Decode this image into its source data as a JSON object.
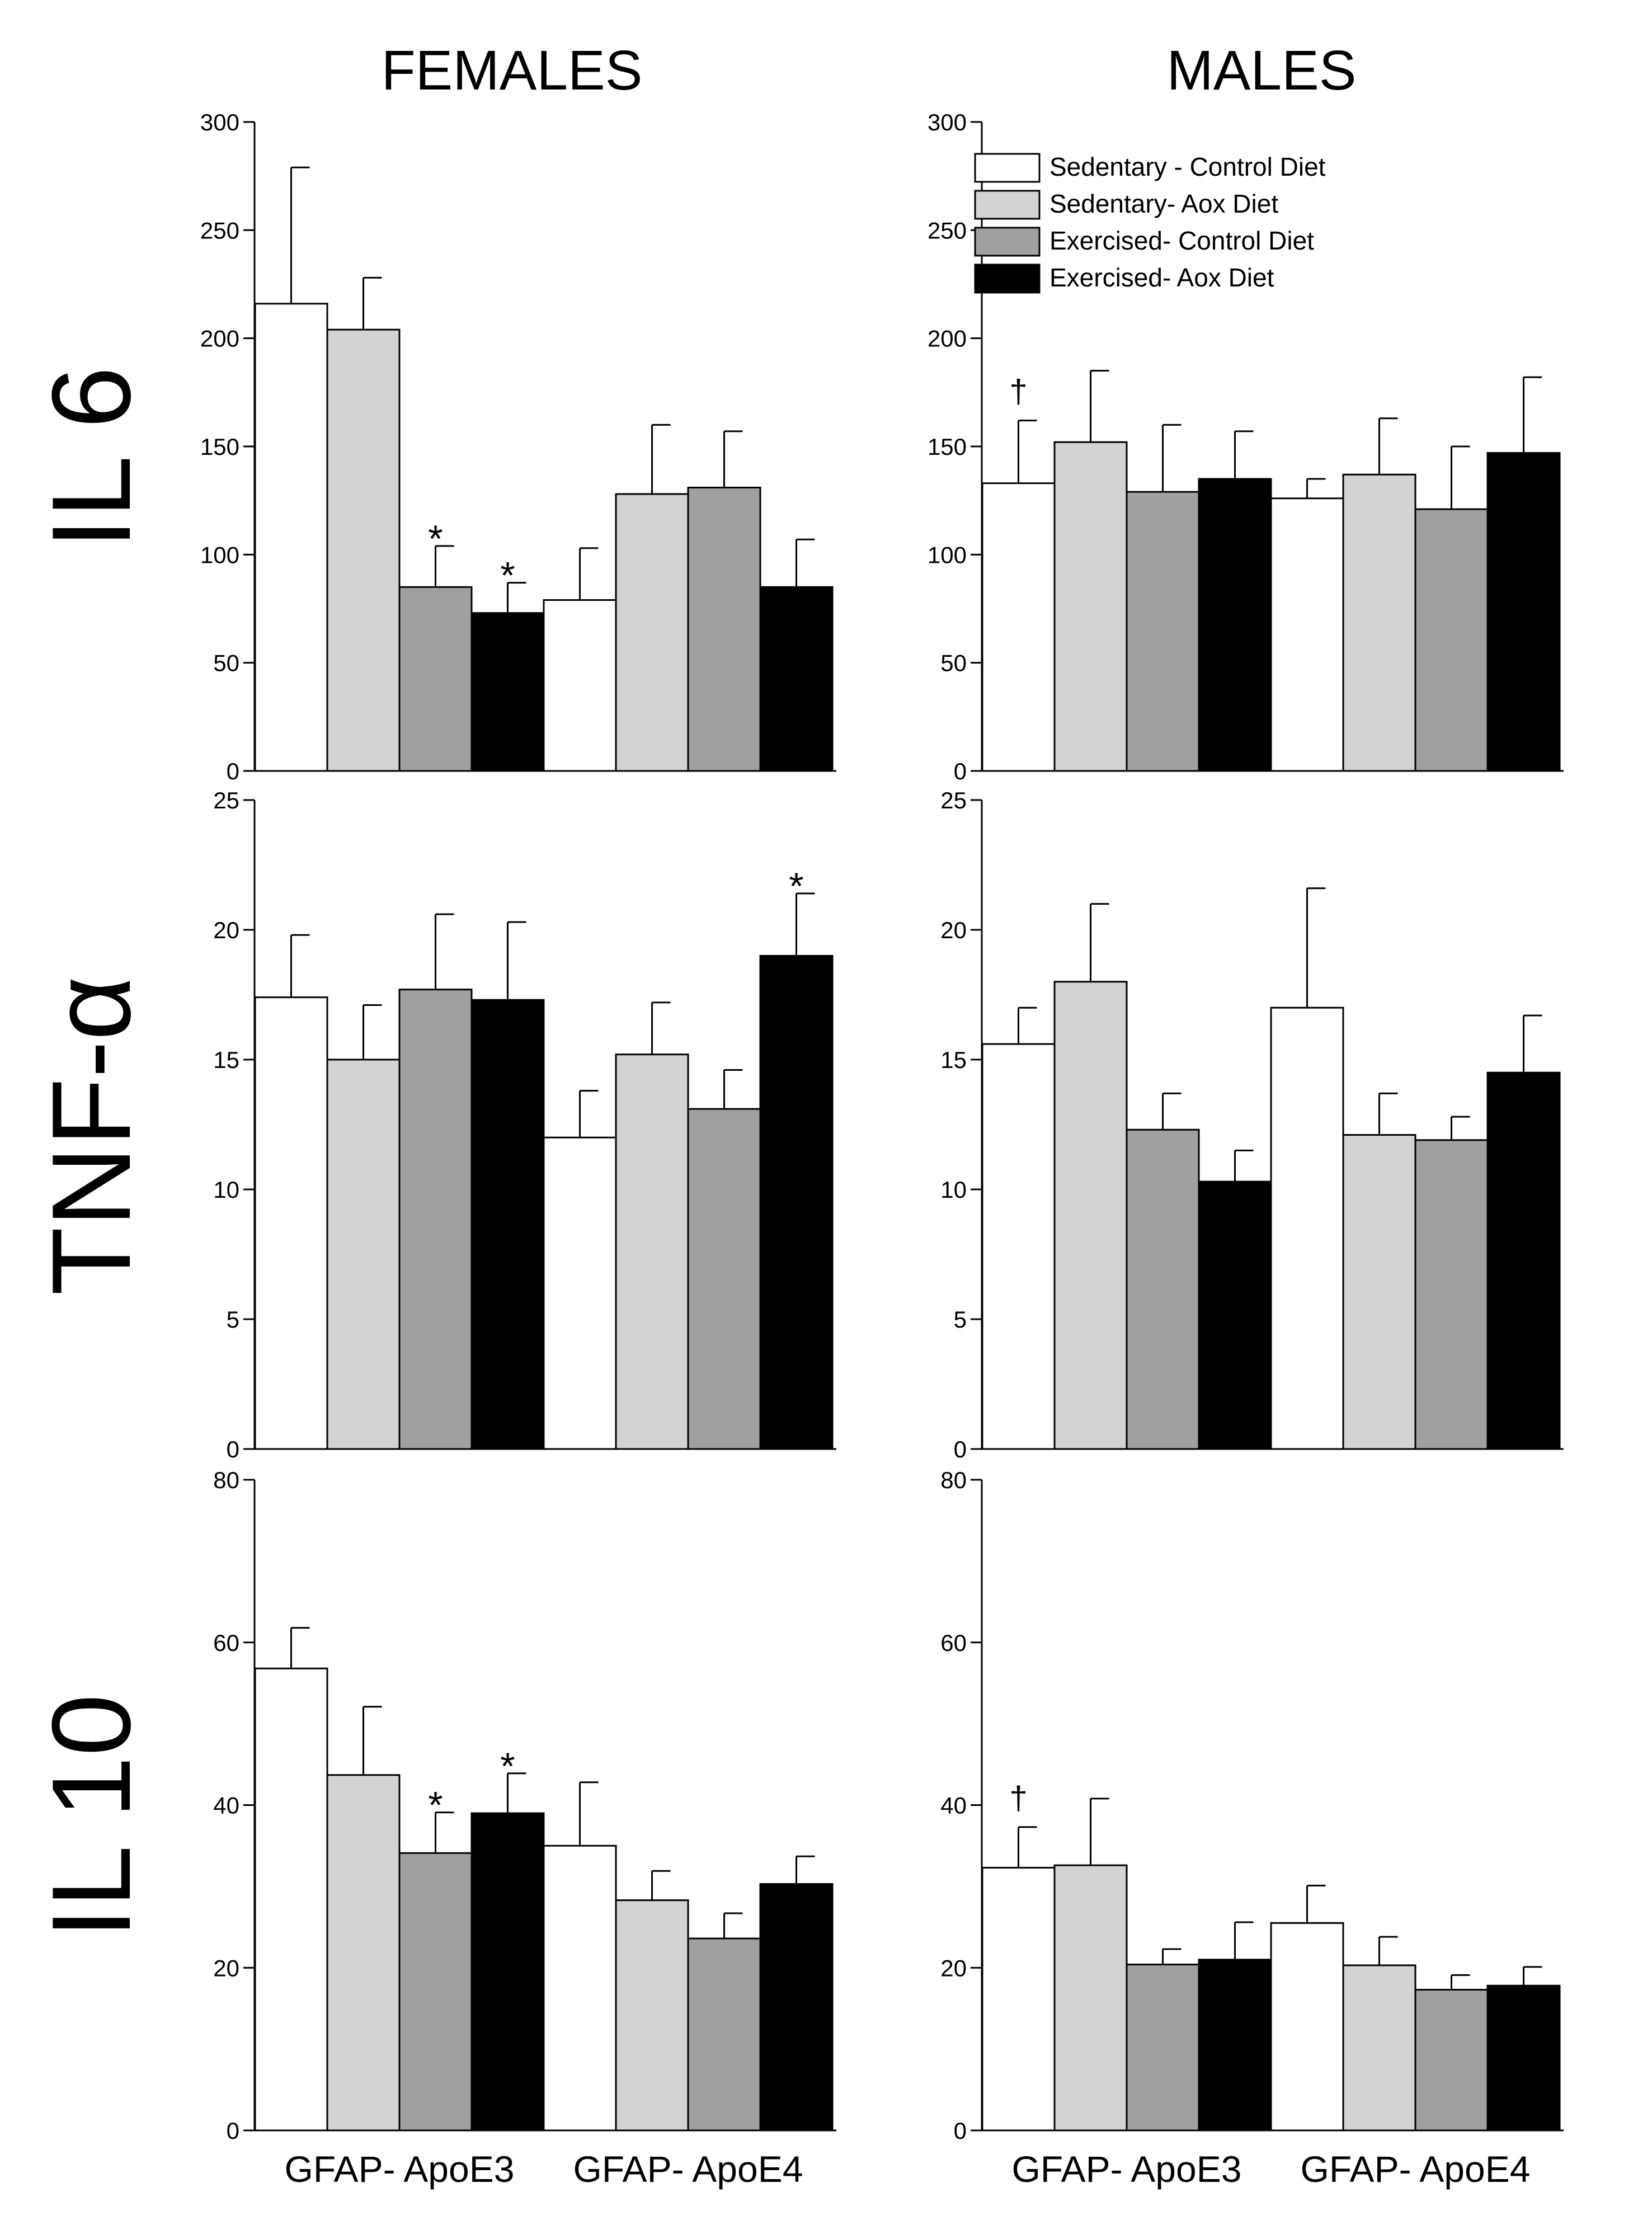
{
  "colors": {
    "sedentary_control": "#ffffff",
    "sedentary_aox": "#d3d3d3",
    "exercised_control": "#a0a0a0",
    "exercised_aox": "#000000"
  },
  "legend": {
    "items": [
      {
        "label": "Sedentary - Control Diet",
        "color_key": "sedentary_control"
      },
      {
        "label": "Sedentary- Aox Diet",
        "color_key": "sedentary_aox"
      },
      {
        "label": " Exercised- Control Diet",
        "color_key": "exercised_control"
      },
      {
        "label": "Exercised- Aox Diet",
        "color_key": "exercised_aox"
      }
    ]
  },
  "chart_data": [
    {
      "id": "il6-females",
      "type": "bar",
      "column_title": "FEMALES",
      "row_label": "IL 6",
      "categories": [
        "GFAP- ApoE3",
        "GFAP- ApoE4"
      ],
      "ylim": [
        0,
        300
      ],
      "yticks": [
        0,
        50,
        100,
        150,
        200,
        250,
        300
      ],
      "series": [
        {
          "name": "Sedentary - Control Diet",
          "values": [
            216,
            79
          ],
          "errors": [
            63,
            24
          ]
        },
        {
          "name": "Sedentary- Aox Diet",
          "values": [
            204,
            128
          ],
          "errors": [
            24,
            32
          ]
        },
        {
          "name": "Exercised- Control Diet",
          "values": [
            85,
            131
          ],
          "errors": [
            19,
            26
          ]
        },
        {
          "name": "Exercised- Aox Diet",
          "values": [
            73,
            85
          ],
          "errors": [
            14,
            22
          ]
        }
      ],
      "annotations": [
        {
          "group": 0,
          "series": 2,
          "text": "*"
        },
        {
          "group": 0,
          "series": 3,
          "text": "*"
        }
      ]
    },
    {
      "id": "il6-males",
      "type": "bar",
      "column_title": "MALES",
      "categories": [
        "GFAP- ApoE3",
        "GFAP- ApoE4"
      ],
      "ylim": [
        0,
        300
      ],
      "yticks": [
        0,
        50,
        100,
        150,
        200,
        250,
        300
      ],
      "series": [
        {
          "name": "Sedentary - Control Diet",
          "values": [
            133,
            126
          ],
          "errors": [
            29,
            9
          ]
        },
        {
          "name": "Sedentary- Aox Diet",
          "values": [
            152,
            137
          ],
          "errors": [
            33,
            26
          ]
        },
        {
          "name": "Exercised- Control Diet",
          "values": [
            129,
            121
          ],
          "errors": [
            31,
            29
          ]
        },
        {
          "name": "Exercised- Aox Diet",
          "values": [
            135,
            147
          ],
          "errors": [
            22,
            35
          ]
        }
      ],
      "annotations": [
        {
          "group": 0,
          "series": 0,
          "text": "†"
        }
      ]
    },
    {
      "id": "tnf-females",
      "type": "bar",
      "row_label": "TNF-α",
      "categories": [
        "GFAP- ApoE3",
        "GFAP- ApoE4"
      ],
      "ylim": [
        0,
        25
      ],
      "yticks": [
        0,
        5,
        10,
        15,
        20,
        25
      ],
      "series": [
        {
          "name": "Sedentary - Control Diet",
          "values": [
            17.4,
            12.0
          ],
          "errors": [
            2.4,
            1.8
          ]
        },
        {
          "name": "Sedentary- Aox Diet",
          "values": [
            15.0,
            15.2
          ],
          "errors": [
            2.1,
            2.0
          ]
        },
        {
          "name": "Exercised- Control Diet",
          "values": [
            17.7,
            13.1
          ],
          "errors": [
            2.9,
            1.5
          ]
        },
        {
          "name": "Exercised- Aox Diet",
          "values": [
            17.3,
            19.0
          ],
          "errors": [
            3.0,
            2.4
          ]
        }
      ],
      "annotations": [
        {
          "group": 1,
          "series": 3,
          "text": "*"
        }
      ]
    },
    {
      "id": "tnf-males",
      "type": "bar",
      "categories": [
        "GFAP- ApoE3",
        "GFAP- ApoE4"
      ],
      "ylim": [
        0,
        25
      ],
      "yticks": [
        0,
        5,
        10,
        15,
        20,
        25
      ],
      "series": [
        {
          "name": "Sedentary - Control Diet",
          "values": [
            15.6,
            17.0
          ],
          "errors": [
            1.4,
            4.6
          ]
        },
        {
          "name": "Sedentary- Aox Diet",
          "values": [
            18.0,
            12.1
          ],
          "errors": [
            3.0,
            1.6
          ]
        },
        {
          "name": "Exercised- Control Diet",
          "values": [
            12.3,
            11.9
          ],
          "errors": [
            1.4,
            0.9
          ]
        },
        {
          "name": "Exercised- Aox Diet",
          "values": [
            10.3,
            14.5
          ],
          "errors": [
            1.2,
            2.2
          ]
        }
      ],
      "annotations": []
    },
    {
      "id": "il10-females",
      "type": "bar",
      "row_label": "IL 10",
      "categories": [
        "GFAP- ApoE3",
        "GFAP- ApoE4"
      ],
      "ylim": [
        0,
        80
      ],
      "yticks": [
        0,
        20,
        40,
        60,
        80
      ],
      "series": [
        {
          "name": "Sedentary - Control Diet",
          "values": [
            56.8,
            35.0
          ],
          "errors": [
            5.0,
            7.8
          ]
        },
        {
          "name": "Sedentary- Aox Diet",
          "values": [
            43.7,
            28.3
          ],
          "errors": [
            8.4,
            3.6
          ]
        },
        {
          "name": "Exercised- Control Diet",
          "values": [
            34.1,
            23.6
          ],
          "errors": [
            5.0,
            3.1
          ]
        },
        {
          "name": "Exercised- Aox Diet",
          "values": [
            39.0,
            30.3
          ],
          "errors": [
            4.9,
            3.4
          ]
        }
      ],
      "annotations": [
        {
          "group": 0,
          "series": 2,
          "text": "*"
        },
        {
          "group": 0,
          "series": 3,
          "text": "*"
        }
      ]
    },
    {
      "id": "il10-males",
      "type": "bar",
      "categories": [
        "GFAP- ApoE3",
        "GFAP- ApoE4"
      ],
      "ylim": [
        0,
        80
      ],
      "yticks": [
        0,
        20,
        40,
        60,
        80
      ],
      "series": [
        {
          "name": "Sedentary - Control Diet",
          "values": [
            32.3,
            25.5
          ],
          "errors": [
            5.0,
            4.6
          ]
        },
        {
          "name": "Sedentary- Aox Diet",
          "values": [
            32.6,
            20.3
          ],
          "errors": [
            8.2,
            3.5
          ]
        },
        {
          "name": "Exercised- Control Diet",
          "values": [
            20.4,
            17.3
          ],
          "errors": [
            1.9,
            1.8
          ]
        },
        {
          "name": "Exercised- Aox Diet",
          "values": [
            21.0,
            17.8
          ],
          "errors": [
            4.6,
            2.3
          ]
        }
      ],
      "annotations": [
        {
          "group": 0,
          "series": 0,
          "text": "†"
        }
      ]
    }
  ]
}
